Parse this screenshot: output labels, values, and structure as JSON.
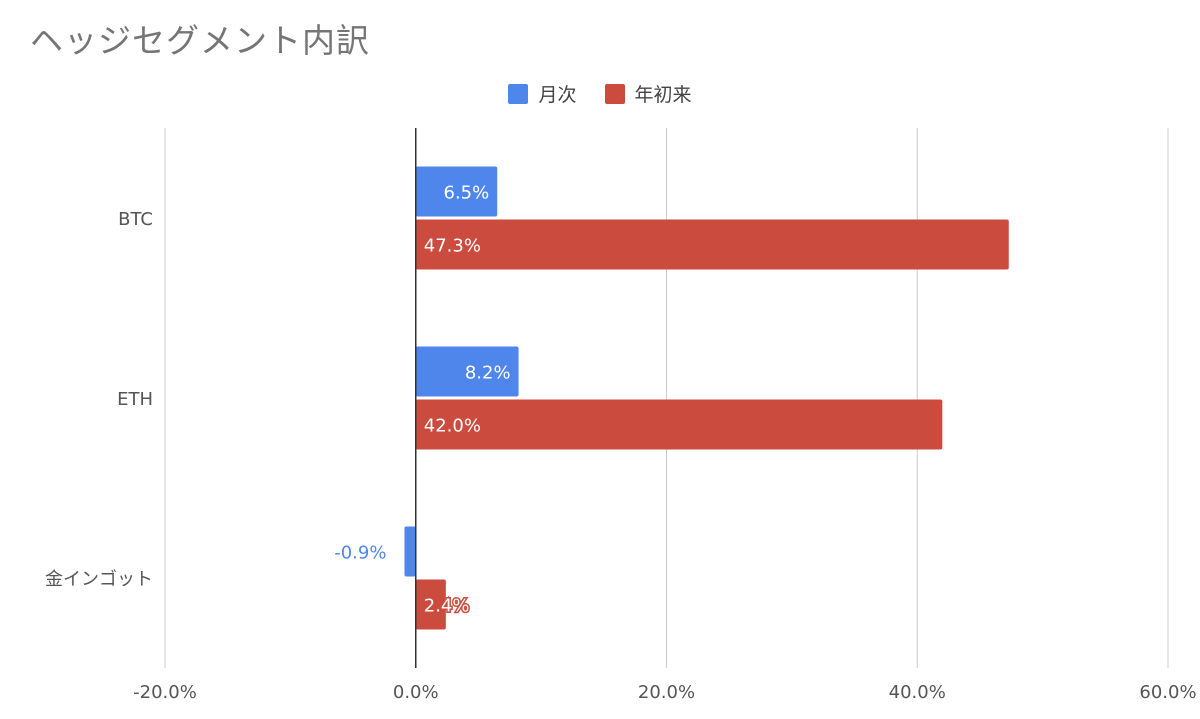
{
  "chart_data": {
    "type": "bar",
    "orientation": "horizontal",
    "title": "ヘッジセグメント内訳",
    "categories": [
      "BTC",
      "ETH",
      "金インゴット"
    ],
    "series": [
      {
        "name": "月次",
        "values": [
          6.5,
          8.2,
          -0.9
        ],
        "labels": [
          "6.5%",
          "8.2%",
          "-0.9%"
        ],
        "color": "#4f86ec"
      },
      {
        "name": "年初来",
        "values": [
          47.3,
          42.0,
          2.4
        ],
        "labels": [
          "47.3%",
          "42.0%",
          "2.4%"
        ],
        "color": "#cc4b3f"
      }
    ],
    "xlim": [
      -20,
      60
    ],
    "xticks": [
      -20,
      0,
      20,
      40,
      60
    ],
    "xtick_labels": [
      "-20.0%",
      "0.0%",
      "20.0%",
      "40.0%",
      "60.0%"
    ],
    "xlabel": "",
    "ylabel": "",
    "grid": true,
    "legend_position": "top"
  }
}
